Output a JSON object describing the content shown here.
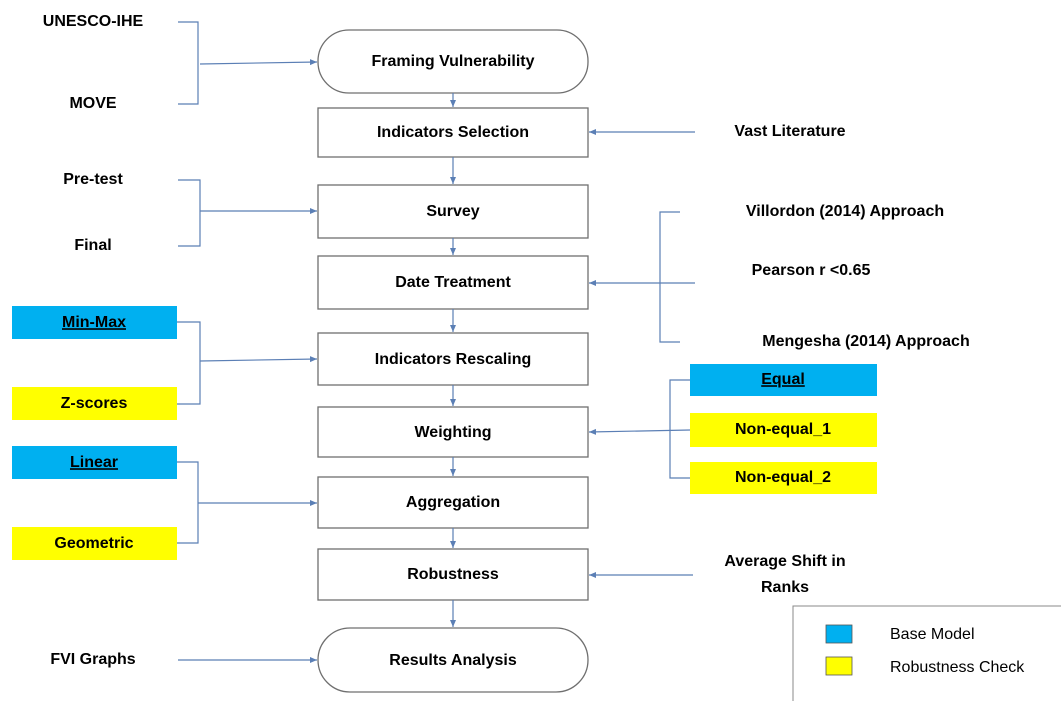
{
  "steps": [
    "Framing Vulnerability",
    "Indicators Selection",
    "Survey",
    "Date Treatment",
    "Indicators Rescaling",
    "Weighting",
    "Aggregation",
    "Robustness",
    "Results Analysis"
  ],
  "inputs": {
    "framing": [
      "UNESCO-IHE",
      "MOVE"
    ],
    "selection": "Vast Literature",
    "survey": [
      "Pre-test",
      "Final"
    ],
    "treatment": [
      "Villordon (2014) Approach",
      "Pearson r <0.65",
      "Mengesha (2014) Approach"
    ],
    "rescaling": [
      "Min-Max",
      "Z-scores"
    ],
    "weighting": [
      "Equal",
      "Non-equal_1",
      "Non-equal_2"
    ],
    "aggregation": [
      "Linear",
      "Geometric"
    ],
    "robustness": [
      "Average Shift in",
      "Ranks"
    ],
    "results": "FVI Graphs"
  },
  "legend": [
    {
      "label": "Base Model",
      "color": "#00b0f0"
    },
    {
      "label": "Robustness Check",
      "color": "#ffff00"
    }
  ]
}
